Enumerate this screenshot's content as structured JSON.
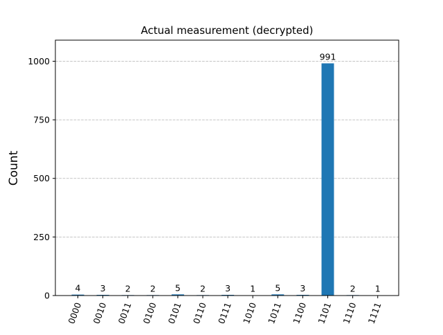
{
  "chart_data": {
    "type": "bar",
    "title": "Actual measurement (decrypted)",
    "xlabel": "",
    "ylabel": "Count",
    "categories": [
      "0000",
      "0010",
      "0011",
      "0100",
      "0101",
      "0110",
      "0111",
      "1010",
      "1011",
      "1100",
      "1101",
      "1110",
      "1111"
    ],
    "values": [
      4,
      3,
      2,
      2,
      5,
      2,
      3,
      1,
      5,
      3,
      991,
      2,
      1
    ],
    "data_labels": [
      "4",
      "3",
      "2",
      "2",
      "5",
      "2",
      "3",
      "1",
      "5",
      "3",
      "991",
      "2",
      "1"
    ],
    "ylim": [
      0,
      1090
    ],
    "yticks": [
      0,
      250,
      500,
      750,
      1000
    ],
    "ytick_labels": [
      "0",
      "250",
      "500",
      "750",
      "1000"
    ],
    "grid": true,
    "legend": "none",
    "colors": {
      "bar": "#1f77b4",
      "grid": "#b0b0b0",
      "axis": "#000000"
    }
  }
}
